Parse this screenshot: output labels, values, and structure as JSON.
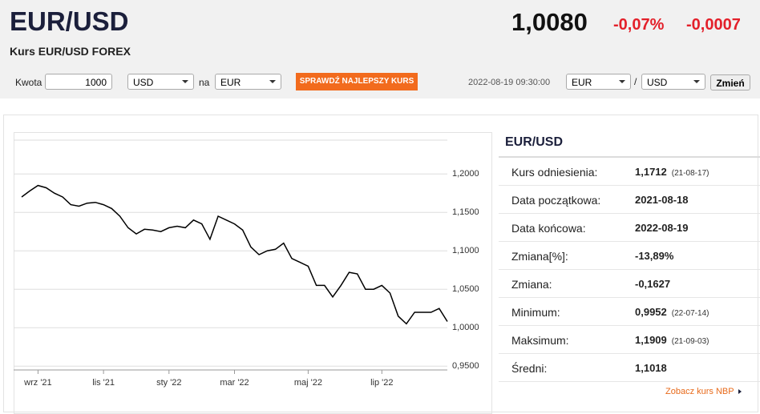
{
  "header": {
    "title": "EUR/USD",
    "subtitle": "Kurs EUR/USD FOREX",
    "price": "1,0080",
    "change_pct": "-0,07%",
    "change": "-0,0007"
  },
  "form": {
    "amount_label": "Kwota",
    "amount": "1000",
    "from": "USD",
    "to_label": "na",
    "to": "EUR",
    "button": "SPRAWDŹ NAJLEPSZY KURS",
    "timestamp": "2022-08-19 09:30:00",
    "pair_from": "EUR",
    "separator": "/",
    "pair_to": "USD",
    "swap": "Zmień"
  },
  "chart_data": {
    "type": "line",
    "color": "#000000",
    "categories": [
      null,
      null,
      "wrz '21",
      null,
      null,
      null,
      null,
      null,
      null,
      null,
      "lis '21",
      null,
      null,
      null,
      null,
      null,
      null,
      null,
      "sty '22",
      null,
      null,
      null,
      null,
      null,
      null,
      null,
      "mar '22",
      null,
      null,
      null,
      null,
      null,
      null,
      null,
      null,
      "maj '22",
      null,
      null,
      null,
      null,
      null,
      null,
      null,
      null,
      "lip '22",
      null,
      null,
      null,
      null,
      null,
      null,
      null,
      null
    ],
    "values": [
      1.17,
      1.178,
      1.185,
      1.182,
      1.175,
      1.17,
      1.16,
      1.158,
      1.162,
      1.163,
      1.16,
      1.155,
      1.145,
      1.13,
      1.122,
      1.128,
      1.127,
      1.125,
      1.13,
      1.132,
      1.13,
      1.14,
      1.135,
      1.115,
      1.145,
      1.14,
      1.135,
      1.127,
      1.105,
      1.095,
      1.1,
      1.102,
      1.11,
      1.09,
      1.085,
      1.08,
      1.055,
      1.055,
      1.04,
      1.055,
      1.072,
      1.07,
      1.05,
      1.05,
      1.055,
      1.045,
      1.015,
      1.005,
      1.02,
      1.02,
      1.02,
      1.025,
      1.008
    ],
    "ylim": [
      0.945,
      1.244
    ],
    "yticks": [
      {
        "value": 0.95,
        "label": "0,9500"
      },
      {
        "value": 1.0,
        "label": "1,0000"
      },
      {
        "value": 1.05,
        "label": "1,0500"
      },
      {
        "value": 1.1,
        "label": "1,1000"
      },
      {
        "value": 1.15,
        "label": "1,1500"
      },
      {
        "value": 1.2,
        "label": "1,2000"
      }
    ],
    "grid": true
  },
  "stats": {
    "title": "EUR/USD",
    "rows": [
      {
        "label": "Kurs odniesienia:",
        "value": "1,1712",
        "date": "(21-08-17)"
      },
      {
        "label": "Data początkowa:",
        "value": "2021-08-18"
      },
      {
        "label": "Data końcowa:",
        "value": "2022-08-19"
      },
      {
        "label": "Zmiana[%]:",
        "value": "-13,89%"
      },
      {
        "label": "Zmiana:",
        "value": "-0,1627"
      },
      {
        "label": "Minimum:",
        "value": "0,9952",
        "date": "(22-07-14)"
      },
      {
        "label": "Maksimum:",
        "value": "1,1909",
        "date": "(21-09-03)"
      },
      {
        "label": "Średni:",
        "value": "1,1018"
      }
    ],
    "link": "Zobacz kurs NBP"
  }
}
